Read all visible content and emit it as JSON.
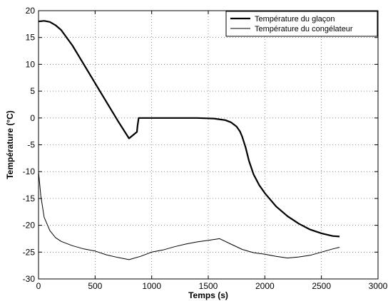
{
  "chart_data": {
    "type": "line",
    "title": "",
    "xlabel": "Temps (s)",
    "ylabel": "Température (°C)",
    "xlim": [
      0,
      3000
    ],
    "ylim": [
      -30,
      20
    ],
    "xticks": [
      0,
      500,
      1000,
      1500,
      2000,
      2500,
      3000
    ],
    "yticks": [
      -30,
      -25,
      -20,
      -15,
      -10,
      -5,
      0,
      5,
      10,
      15,
      20
    ],
    "grid": true,
    "legend_position": "top-right",
    "series": [
      {
        "name": "Température du glaçon",
        "color": "#000000",
        "line_weight": "thick",
        "x": [
          0,
          50,
          100,
          150,
          200,
          300,
          400,
          500,
          600,
          700,
          800,
          870,
          875,
          885,
          900,
          1000,
          1200,
          1400,
          1550,
          1650,
          1700,
          1750,
          1780,
          1800,
          1830,
          1860,
          1900,
          1950,
          2000,
          2100,
          2200,
          2300,
          2400,
          2500,
          2600,
          2660
        ],
        "y": [
          18.0,
          18.1,
          17.9,
          17.3,
          16.4,
          13.5,
          10.0,
          6.5,
          3.0,
          -0.5,
          -3.8,
          -2.6,
          -1.5,
          0.0,
          0.0,
          0.0,
          0.0,
          0.0,
          -0.1,
          -0.4,
          -0.8,
          -1.6,
          -2.5,
          -3.5,
          -5.5,
          -8.0,
          -10.5,
          -12.5,
          -14.0,
          -16.5,
          -18.3,
          -19.7,
          -20.8,
          -21.5,
          -22.0,
          -22.1
        ]
      },
      {
        "name": "Température du congélateur",
        "color": "#000000",
        "line_weight": "thin",
        "x": [
          0,
          20,
          50,
          100,
          150,
          200,
          300,
          400,
          500,
          600,
          700,
          800,
          900,
          1000,
          1100,
          1200,
          1300,
          1400,
          1500,
          1600,
          1700,
          1800,
          1900,
          2000,
          2100,
          2200,
          2300,
          2400,
          2500,
          2600,
          2660
        ],
        "y": [
          -10.0,
          -14.5,
          -18.5,
          -21.0,
          -22.3,
          -23.0,
          -23.8,
          -24.4,
          -24.8,
          -25.5,
          -26.0,
          -26.4,
          -25.8,
          -25.0,
          -24.6,
          -24.0,
          -23.5,
          -23.1,
          -22.8,
          -22.5,
          -23.5,
          -24.5,
          -25.1,
          -25.4,
          -25.8,
          -26.1,
          -25.9,
          -25.6,
          -25.0,
          -24.4,
          -24.1
        ]
      }
    ]
  }
}
